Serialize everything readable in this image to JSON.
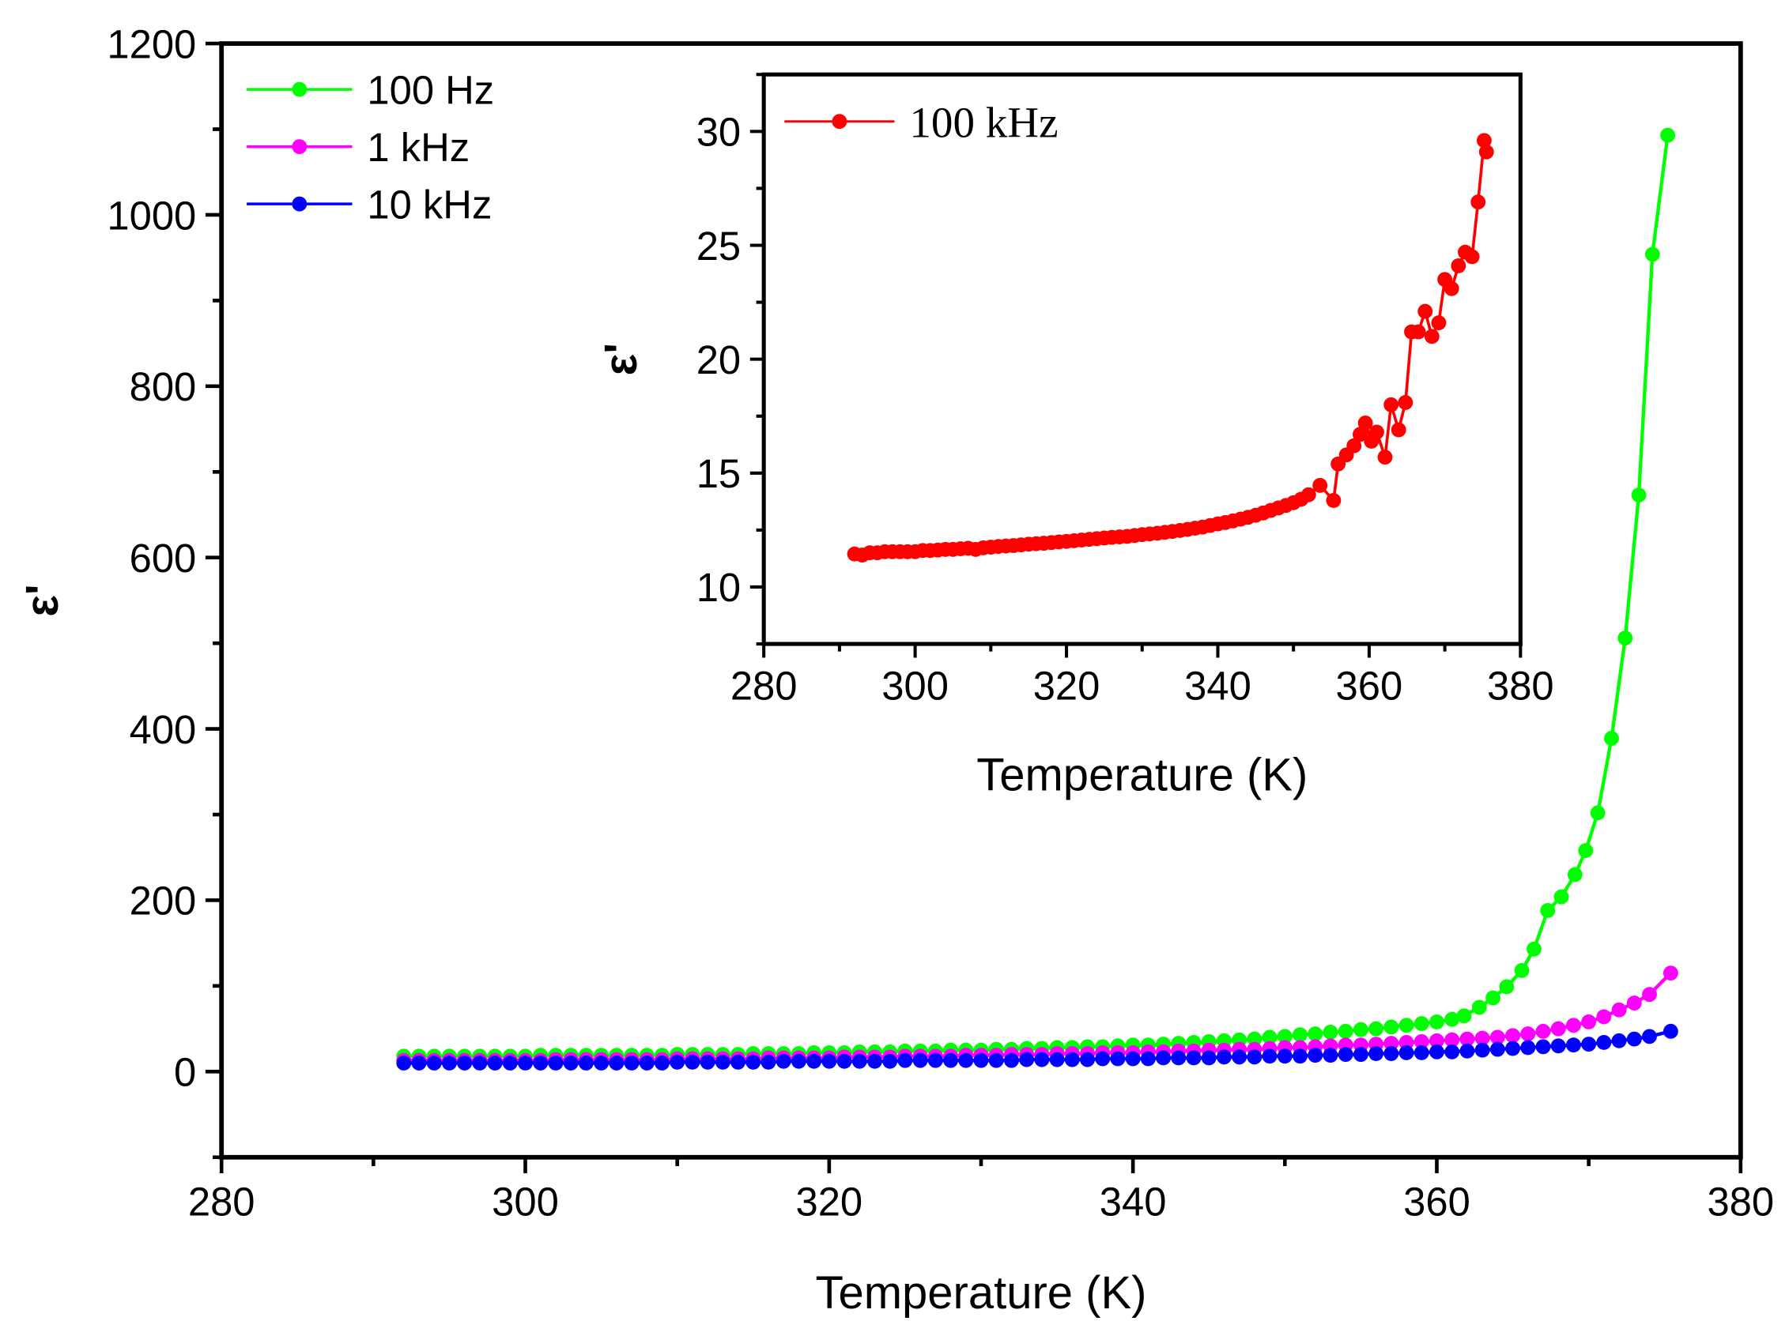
{
  "chart_data": [
    {
      "type": "line",
      "name": "main",
      "xlabel": "Temperature (K)",
      "ylabel": "ε'",
      "xlim": [
        280,
        380
      ],
      "ylim": [
        -100,
        1200
      ],
      "xticks": [
        280,
        300,
        320,
        340,
        360,
        380
      ],
      "yticks": [
        0,
        200,
        400,
        600,
        800,
        1000,
        1200
      ],
      "legend_position": "top-left",
      "series": [
        {
          "name": "100 Hz",
          "color": "#00ff00",
          "x": [
            292,
            293,
            294,
            295,
            296,
            297,
            298,
            299,
            300,
            301,
            302,
            303,
            304,
            305,
            306,
            307,
            308,
            309,
            310,
            311,
            312,
            313,
            314,
            315,
            316,
            317,
            318,
            319,
            320,
            321,
            322,
            323,
            324,
            325,
            326,
            327,
            328,
            329,
            330,
            331,
            332,
            333,
            334,
            335,
            336,
            337,
            338,
            339,
            340,
            341,
            342,
            343,
            344,
            345,
            346,
            347,
            348,
            349,
            350,
            351,
            352,
            353,
            354,
            355,
            356,
            357,
            358,
            359,
            360,
            361,
            361.8,
            362.8,
            363.7,
            364.6,
            365.6,
            366.4,
            367.3,
            368.2,
            369.1,
            369.8,
            370.6,
            371.5,
            372.4,
            373.3,
            374.2,
            375.2
          ],
          "y": [
            18,
            18,
            18,
            18,
            18,
            18,
            18,
            18,
            18,
            19,
            19,
            19,
            19,
            19,
            19,
            19,
            19,
            19,
            20,
            20,
            20,
            20,
            20,
            21,
            21,
            21,
            21,
            22,
            22,
            22,
            23,
            23,
            23,
            24,
            24,
            24,
            25,
            25,
            25,
            26,
            26,
            27,
            27,
            28,
            28,
            29,
            29,
            30,
            31,
            31,
            32,
            33,
            34,
            35,
            36,
            37,
            38,
            40,
            41,
            43,
            44,
            46,
            47,
            49,
            50,
            52,
            54,
            56,
            58,
            61,
            65,
            75,
            86,
            99,
            118,
            143,
            188,
            204,
            230,
            258,
            302,
            389,
            506,
            673,
            954,
            1093
          ]
        },
        {
          "name": "1 kHz",
          "color": "#ff00ff",
          "x": [
            292,
            293,
            294,
            295,
            296,
            297,
            298,
            299,
            300,
            301,
            302,
            303,
            304,
            305,
            306,
            307,
            308,
            309,
            310,
            311,
            312,
            313,
            314,
            315,
            316,
            317,
            318,
            319,
            320,
            321,
            322,
            323,
            324,
            325,
            326,
            327,
            328,
            329,
            330,
            331,
            332,
            333,
            334,
            335,
            336,
            337,
            338,
            339,
            340,
            341,
            342,
            343,
            344,
            345,
            346,
            347,
            348,
            349,
            350,
            351,
            352,
            353,
            354,
            355,
            356,
            357,
            358,
            359,
            360,
            361,
            362,
            363,
            364,
            365,
            366,
            367,
            368,
            369,
            370,
            371,
            372,
            373,
            374,
            375.4
          ],
          "y": [
            13,
            13,
            13,
            13,
            13,
            13,
            13,
            13,
            13,
            13,
            14,
            14,
            14,
            14,
            14,
            14,
            14,
            14,
            15,
            15,
            15,
            15,
            15,
            15,
            16,
            16,
            16,
            16,
            16,
            17,
            17,
            17,
            17,
            18,
            18,
            18,
            18,
            19,
            19,
            19,
            20,
            20,
            20,
            21,
            21,
            21,
            22,
            22,
            22,
            23,
            23,
            24,
            24,
            25,
            25,
            26,
            26,
            27,
            28,
            28,
            29,
            30,
            31,
            31,
            32,
            33,
            34,
            35,
            36,
            37,
            38,
            39,
            40,
            42,
            44,
            47,
            50,
            54,
            58,
            64,
            72,
            80,
            90,
            115
          ]
        },
        {
          "name": "10 kHz",
          "color": "#0000ff",
          "x": [
            292,
            293,
            294,
            295,
            296,
            297,
            298,
            299,
            300,
            301,
            302,
            303,
            304,
            305,
            306,
            307,
            308,
            309,
            310,
            311,
            312,
            313,
            314,
            315,
            316,
            317,
            318,
            319,
            320,
            321,
            322,
            323,
            324,
            325,
            326,
            327,
            328,
            329,
            330,
            331,
            332,
            333,
            334,
            335,
            336,
            337,
            338,
            339,
            340,
            341,
            342,
            343,
            344,
            345,
            346,
            347,
            348,
            349,
            350,
            351,
            352,
            353,
            354,
            355,
            356,
            357,
            358,
            359,
            360,
            361,
            362,
            363,
            364,
            365,
            366,
            367,
            368,
            369,
            370,
            371,
            372,
            373,
            374,
            375.4
          ],
          "y": [
            10,
            10,
            10,
            10,
            10,
            10,
            10,
            10,
            10,
            10,
            10,
            10,
            10,
            10,
            10,
            10,
            10,
            10,
            11,
            11,
            11,
            11,
            11,
            11,
            11,
            12,
            12,
            12,
            12,
            12,
            12,
            12,
            12,
            13,
            13,
            13,
            13,
            13,
            13,
            13,
            13,
            14,
            14,
            14,
            14,
            14,
            15,
            15,
            15,
            15,
            16,
            16,
            16,
            16,
            17,
            17,
            17,
            18,
            18,
            18,
            19,
            19,
            20,
            20,
            21,
            21,
            22,
            22,
            23,
            23,
            24,
            25,
            26,
            27,
            28,
            29,
            30,
            31,
            32,
            34,
            36,
            38,
            41,
            47
          ]
        }
      ]
    },
    {
      "type": "line",
      "name": "inset",
      "xlabel": "Temperature (K)",
      "ylabel": "ε'",
      "xlim": [
        280,
        380
      ],
      "ylim": [
        7.5,
        32.5
      ],
      "xticks": [
        280,
        300,
        320,
        340,
        360,
        380
      ],
      "yticks": [
        10,
        15,
        20,
        25,
        30
      ],
      "legend_position": "top-left",
      "series": [
        {
          "name": "100 kHz",
          "color": "#ff0000",
          "x": [
            292,
            293,
            294,
            295,
            296,
            297,
            298,
            299,
            300,
            301,
            302,
            303,
            304,
            305,
            306,
            307,
            308,
            309,
            310,
            311,
            312,
            313,
            314,
            315,
            316,
            317,
            318,
            319,
            320,
            321,
            322,
            323,
            324,
            325,
            326,
            327,
            328,
            329,
            330,
            331,
            332,
            333,
            334,
            335,
            336,
            337,
            338,
            339,
            340,
            341,
            342,
            343,
            344,
            345,
            346,
            347,
            348,
            349,
            350,
            351,
            352,
            353.5,
            355.3,
            355.9,
            357,
            358,
            358.8,
            359.5,
            360.3,
            361,
            362.1,
            362.9,
            363.9,
            364.8,
            365.6,
            366.5,
            367.4,
            368.3,
            369.2,
            370,
            370.9,
            371.8,
            372.7,
            373.6,
            374.4,
            375.2,
            375.5
          ],
          "y": [
            11.45,
            11.4,
            11.5,
            11.5,
            11.55,
            11.55,
            11.55,
            11.55,
            11.55,
            11.6,
            11.6,
            11.62,
            11.65,
            11.65,
            11.68,
            11.7,
            11.65,
            11.72,
            11.75,
            11.78,
            11.8,
            11.82,
            11.85,
            11.88,
            11.9,
            11.92,
            11.95,
            11.98,
            12.0,
            12.03,
            12.06,
            12.09,
            12.12,
            12.15,
            12.18,
            12.2,
            12.22,
            12.26,
            12.3,
            12.33,
            12.36,
            12.4,
            12.44,
            12.48,
            12.53,
            12.58,
            12.63,
            12.7,
            12.77,
            12.83,
            12.9,
            12.98,
            13.06,
            13.15,
            13.25,
            13.36,
            13.47,
            13.58,
            13.7,
            13.85,
            14.05,
            14.46,
            13.8,
            15.4,
            15.8,
            16.2,
            16.7,
            17.2,
            16.4,
            16.8,
            15.7,
            18.0,
            16.9,
            18.1,
            21.2,
            21.2,
            22.1,
            21.0,
            21.6,
            23.5,
            23.1,
            24.1,
            24.7,
            24.5,
            26.9,
            29.6,
            29.1
          ]
        }
      ]
    }
  ]
}
